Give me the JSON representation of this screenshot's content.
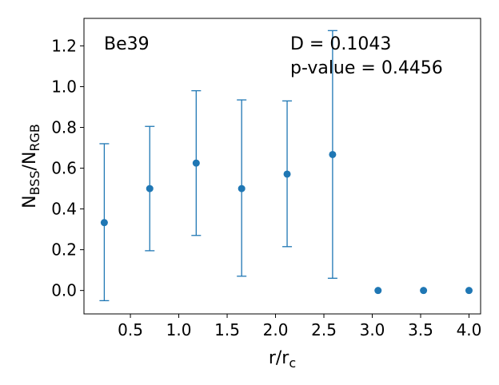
{
  "chart_data": {
    "type": "scatter",
    "annotations": {
      "cluster": "Be39",
      "stat_d": "D = 0.1043",
      "stat_p": "p-value = 0.4456"
    },
    "xlabel": {
      "main": "r/r",
      "sub": "c"
    },
    "ylabel": {
      "main1": "N",
      "sub1": "BSS",
      "mid": "/N",
      "sub2": "RGB"
    },
    "xlim": [
      0.02,
      4.12
    ],
    "ylim": [
      -0.115,
      1.335
    ],
    "xticks": [
      "0.5",
      "1.0",
      "1.5",
      "2.0",
      "2.5",
      "3.0",
      "3.5",
      "4.0"
    ],
    "yticks": [
      "0.0",
      "0.2",
      "0.4",
      "0.6",
      "0.8",
      "1.0",
      "1.2"
    ],
    "color": "#1f77b4",
    "points": [
      {
        "x": 0.23,
        "y": 0.333,
        "err_low": -0.05,
        "err_high": 0.72
      },
      {
        "x": 0.7,
        "y": 0.5,
        "err_low": 0.195,
        "err_high": 0.805
      },
      {
        "x": 1.18,
        "y": 0.625,
        "err_low": 0.27,
        "err_high": 0.98
      },
      {
        "x": 1.65,
        "y": 0.5,
        "err_low": 0.07,
        "err_high": 0.935
      },
      {
        "x": 2.12,
        "y": 0.571,
        "err_low": 0.215,
        "err_high": 0.93
      },
      {
        "x": 2.59,
        "y": 0.667,
        "err_low": 0.06,
        "err_high": 1.275
      },
      {
        "x": 3.06,
        "y": 0.0
      },
      {
        "x": 3.53,
        "y": 0.0
      },
      {
        "x": 4.0,
        "y": 0.0
      }
    ]
  }
}
